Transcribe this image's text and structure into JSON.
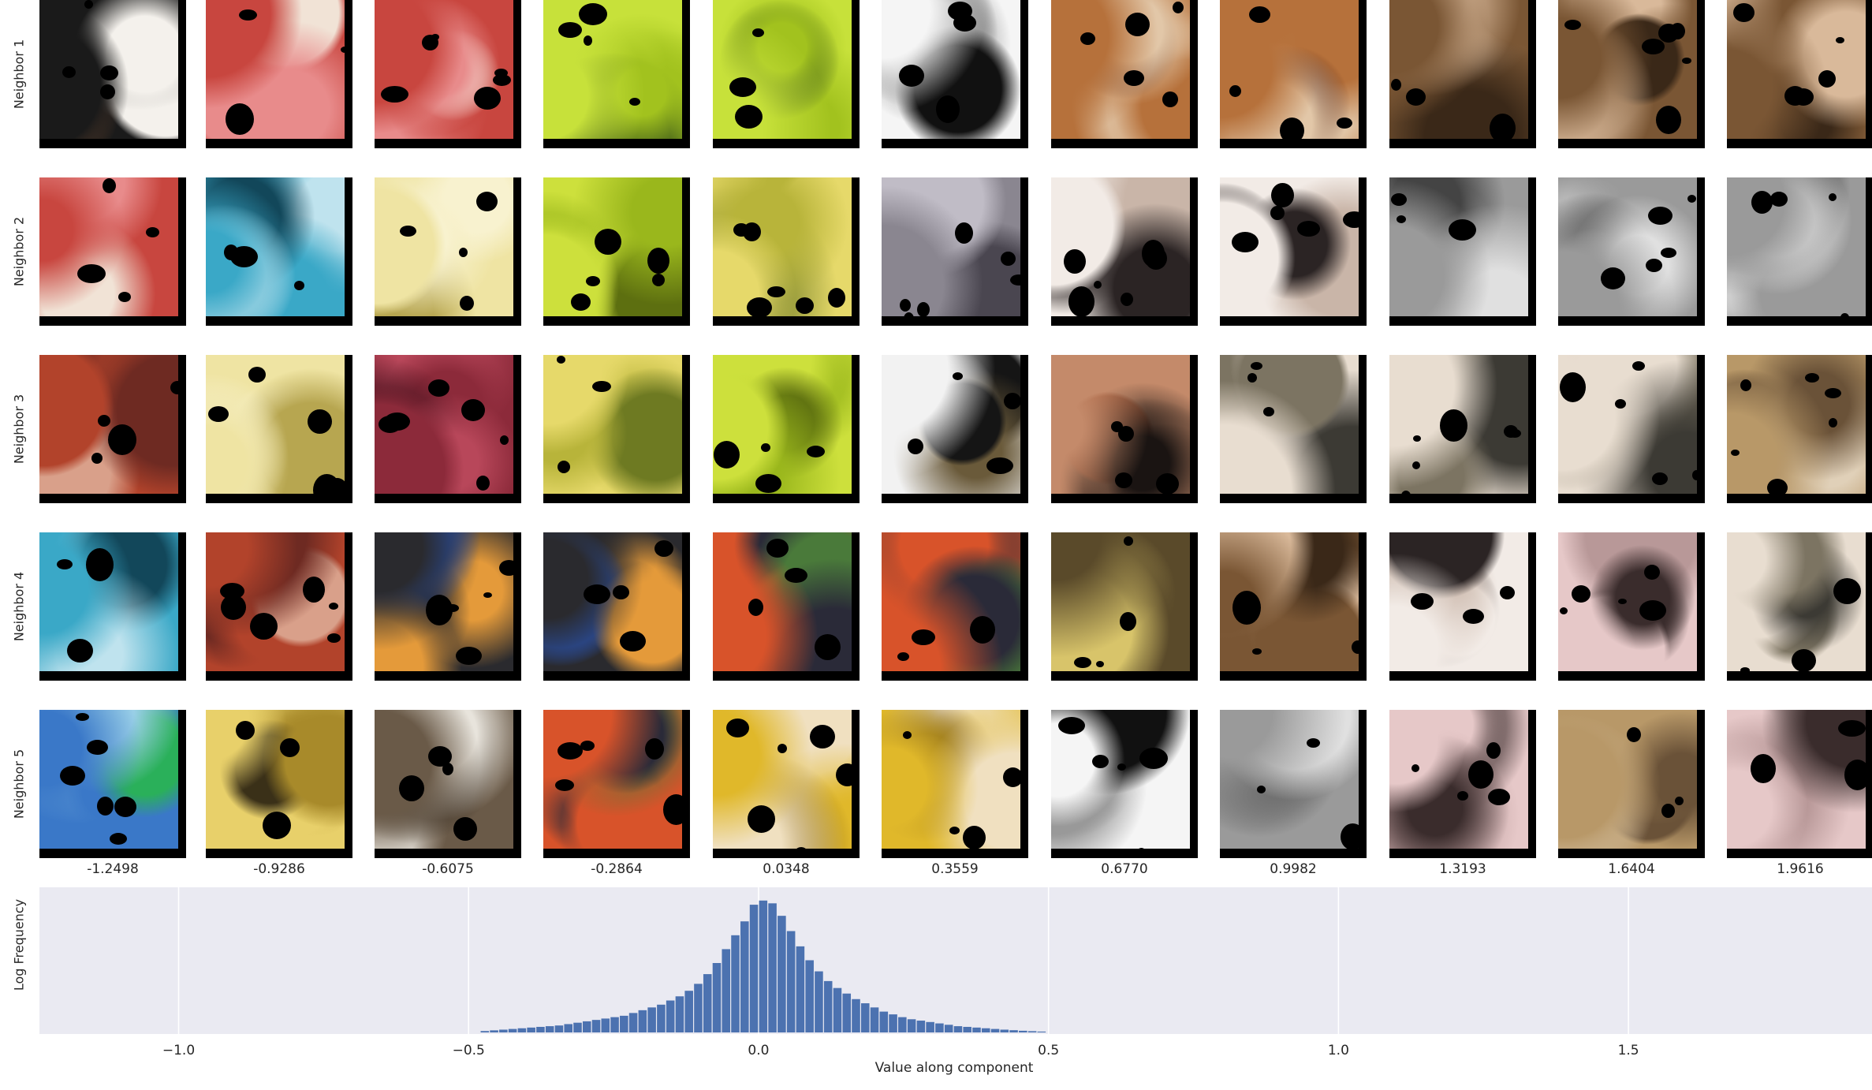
{
  "row_labels": [
    "Neighbor 1",
    "Neighbor 2",
    "Neighbor 3",
    "Neighbor 4",
    "Neighbor 5"
  ],
  "column_values": [
    "-1.2498",
    "-0.9286",
    "-0.6075",
    "-0.2864",
    "0.0348",
    "0.3559",
    "0.6770",
    "0.9982",
    "1.3193",
    "1.6404",
    "1.9616"
  ],
  "image_grid": [
    [
      "dog-nose",
      "red-socks",
      "red-socks",
      "tennis-ball-wilson",
      "tennis-ball-wilson",
      "panda",
      "boxer-dog",
      "boxer-dog",
      "brindle-dog",
      "brindle-dog",
      "brindle-dog"
    ],
    [
      "red-socks",
      "blue-knit",
      "yellow-pineapple",
      "tennis-balls",
      "bananas",
      "grey-cells",
      "pug",
      "pug",
      "grey-dog-bw",
      "grey-dog-bw",
      "grey-dog-bw"
    ],
    [
      "red-lobster",
      "yellow-pineapple",
      "red-curtain",
      "bananas",
      "tennis-balls",
      "zebra",
      "rottweiler",
      "grey-spider",
      "grey-spider",
      "grey-spider",
      "terrier"
    ],
    [
      "blue-knit",
      "red-lobster",
      "black-boot",
      "black-boot",
      "colorful-fabric",
      "colorful-fabric",
      "box-turtle",
      "brindle-dog",
      "pug",
      "pink-spider",
      "grey-spider"
    ],
    [
      "blue-shower-curtain",
      "bananas-close",
      "tarantula",
      "colorful-fabric",
      "yellow-wall",
      "yellow-wall",
      "panda",
      "grey-dog-bw",
      "pink-spider",
      "terrier",
      "pink-spider"
    ]
  ],
  "colors": {
    "histogram_bar": "#4c72b0",
    "panel_background": "#eaeaf2",
    "grid": "#ffffff",
    "mask": "#000000"
  },
  "chart_data": {
    "type": "bar",
    "xlabel": "Value along component",
    "ylabel": "Log Frequency",
    "xlim": [
      -1.24,
      1.92
    ],
    "x_ticks": [
      -1.0,
      -0.5,
      0.0,
      0.5,
      1.0,
      1.5
    ],
    "x_tick_labels": [
      "−1.0",
      "−0.5",
      "0.0",
      "0.5",
      "1.0",
      "1.5"
    ],
    "grid": true,
    "y_tick_labels_shown": false,
    "bin_width": 0.016,
    "bin_centers": [
      -0.472,
      -0.456,
      -0.44,
      -0.424,
      -0.408,
      -0.392,
      -0.376,
      -0.36,
      -0.344,
      -0.328,
      -0.312,
      -0.296,
      -0.28,
      -0.264,
      -0.248,
      -0.232,
      -0.216,
      -0.2,
      -0.184,
      -0.168,
      -0.152,
      -0.136,
      -0.12,
      -0.104,
      -0.088,
      -0.072,
      -0.056,
      -0.04,
      -0.024,
      -0.008,
      0.008,
      0.024,
      0.04,
      0.056,
      0.072,
      0.088,
      0.104,
      0.12,
      0.136,
      0.152,
      0.168,
      0.184,
      0.2,
      0.216,
      0.232,
      0.248,
      0.264,
      0.28,
      0.296,
      0.312,
      0.328,
      0.344,
      0.36,
      0.376,
      0.392,
      0.408,
      0.424,
      0.44,
      0.456,
      0.472,
      0.488
    ],
    "heights_relative": [
      0.01,
      0.015,
      0.02,
      0.025,
      0.03,
      0.035,
      0.04,
      0.045,
      0.05,
      0.06,
      0.07,
      0.08,
      0.09,
      0.1,
      0.11,
      0.12,
      0.14,
      0.16,
      0.18,
      0.2,
      0.23,
      0.26,
      0.3,
      0.35,
      0.42,
      0.5,
      0.6,
      0.7,
      0.8,
      0.92,
      0.95,
      0.93,
      0.84,
      0.73,
      0.62,
      0.52,
      0.44,
      0.37,
      0.32,
      0.28,
      0.24,
      0.21,
      0.18,
      0.15,
      0.13,
      0.11,
      0.095,
      0.085,
      0.075,
      0.065,
      0.055,
      0.045,
      0.04,
      0.035,
      0.03,
      0.025,
      0.02,
      0.016,
      0.012,
      0.009,
      0.006
    ]
  }
}
